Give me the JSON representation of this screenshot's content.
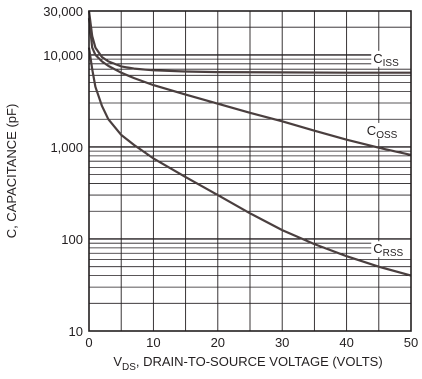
{
  "chart_data": {
    "type": "line",
    "title": "",
    "xlabel_parts": {
      "main": "V",
      "sub": "DS",
      "rest": ", DRAIN-TO-SOURCE VOLTAGE (VOLTS)"
    },
    "ylabel": "C, CAPACITANCE (pF)",
    "x_scale": "linear",
    "y_scale": "log",
    "xlim": [
      0,
      50
    ],
    "ylim": [
      10,
      30000
    ],
    "grid": true,
    "x_ticks": [
      "0",
      "10",
      "20",
      "30",
      "40",
      "50"
    ],
    "y_ticks": [
      "10",
      "100",
      "1,000",
      "10,000",
      "30,000"
    ],
    "series": [
      {
        "name_main": "C",
        "name_sub": "ISS",
        "x": [
          0,
          0.5,
          1,
          2,
          3,
          5,
          7,
          10,
          15,
          20,
          30,
          40,
          50
        ],
        "y": [
          30000,
          16000,
          12000,
          9500,
          8500,
          7500,
          7100,
          6800,
          6600,
          6500,
          6450,
          6400,
          6400
        ]
      },
      {
        "name_main": "C",
        "name_sub": "OSS",
        "x": [
          0,
          0.5,
          1,
          2,
          3,
          5,
          7,
          10,
          15,
          20,
          25,
          30,
          35,
          40,
          45,
          50
        ],
        "y": [
          25000,
          12000,
          10000,
          8500,
          7600,
          6400,
          5600,
          4700,
          3700,
          2950,
          2350,
          1900,
          1500,
          1200,
          980,
          820
        ]
      },
      {
        "name_main": "C",
        "name_sub": "RSS",
        "x": [
          0,
          0.5,
          1,
          2,
          3,
          5,
          7,
          10,
          15,
          20,
          25,
          30,
          35,
          40,
          45,
          50
        ],
        "y": [
          12000,
          7000,
          4500,
          2800,
          2000,
          1350,
          1050,
          750,
          470,
          300,
          190,
          125,
          88,
          65,
          50,
          40
        ]
      }
    ]
  }
}
